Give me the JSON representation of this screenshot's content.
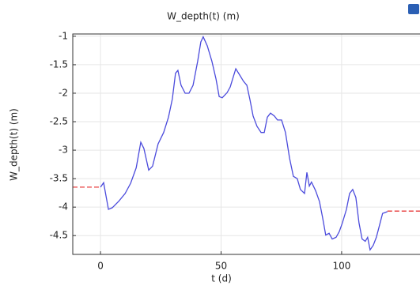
{
  "chart_data": {
    "type": "line",
    "title": "W_depth(t) (m)",
    "xlabel": "t (d)",
    "ylabel": "W_depth(t) (m)",
    "xlim": [
      -11.5,
      132.5
    ],
    "ylim": [
      -4.83,
      -0.96
    ],
    "xticks": [
      0,
      50,
      100
    ],
    "yticks": [
      -1,
      -1.5,
      -2,
      -2.5,
      -3,
      -3.5,
      -4,
      -4.5
    ],
    "grid": true,
    "series": [
      {
        "color": "#4b4bdc",
        "x": [
          0,
          1.3,
          3.3,
          4.9,
          7.5,
          10.2,
          12.5,
          14.8,
          16.7,
          18,
          20,
          21.6,
          23.9,
          26.2,
          28.2,
          29.8,
          31.1,
          32.1,
          33.4,
          35.1,
          36.7,
          38.4,
          40.3,
          41.6,
          42.6,
          44.3,
          46.2,
          47.9,
          49.2,
          50.5,
          52.5,
          53.8,
          55.1,
          56.1,
          57.7,
          59.3,
          60.7,
          62,
          63.3,
          64.9,
          66.6,
          67.9,
          69.2,
          70.5,
          72.1,
          73.4,
          75.1,
          76.7,
          78.4,
          80,
          81.6,
          82.9,
          84.6,
          85.6,
          86.6,
          87.5,
          89.2,
          90.8,
          92.1,
          93.4,
          94.8,
          96.1,
          97.7,
          99,
          100.3,
          102,
          103.3,
          104.6,
          105.9,
          107.2,
          108.5,
          109.8,
          110.8,
          111.8,
          113.1,
          114.4,
          115.7,
          117,
          119
        ],
        "values": [
          -3.65,
          -3.57,
          -4.04,
          -4.01,
          -3.9,
          -3.76,
          -3.58,
          -3.31,
          -2.86,
          -2.97,
          -3.35,
          -3.28,
          -2.89,
          -2.69,
          -2.42,
          -2.1,
          -1.65,
          -1.6,
          -1.86,
          -2.0,
          -2.0,
          -1.86,
          -1.44,
          -1.1,
          -1.01,
          -1.17,
          -1.44,
          -1.75,
          -2.06,
          -2.08,
          -1.99,
          -1.89,
          -1.71,
          -1.57,
          -1.68,
          -1.79,
          -1.86,
          -2.12,
          -2.4,
          -2.58,
          -2.69,
          -2.69,
          -2.42,
          -2.35,
          -2.4,
          -2.47,
          -2.47,
          -2.69,
          -3.14,
          -3.46,
          -3.5,
          -3.69,
          -3.76,
          -3.39,
          -3.63,
          -3.56,
          -3.71,
          -3.9,
          -4.18,
          -4.49,
          -4.46,
          -4.56,
          -4.53,
          -4.43,
          -4.28,
          -4.04,
          -3.76,
          -3.69,
          -3.83,
          -4.28,
          -4.56,
          -4.6,
          -4.53,
          -4.75,
          -4.67,
          -4.53,
          -4.32,
          -4.11,
          -4.08
        ]
      },
      {
        "color": "#e83c3c",
        "dashed": true,
        "x": [
          -11.5,
          0,
          60,
          119,
          132.5
        ],
        "values": [
          -3.65,
          -3.65,
          null,
          -4.07,
          -4.07
        ]
      }
    ]
  }
}
